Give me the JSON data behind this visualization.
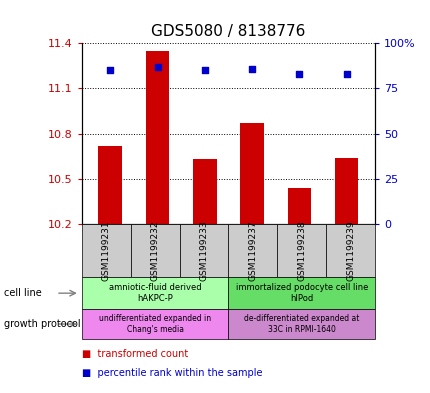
{
  "title": "GDS5080 / 8138776",
  "samples": [
    "GSM1199231",
    "GSM1199232",
    "GSM1199233",
    "GSM1199237",
    "GSM1199238",
    "GSM1199239"
  ],
  "bar_values": [
    10.72,
    11.35,
    10.63,
    10.87,
    10.44,
    10.64
  ],
  "percentile_values": [
    85,
    87,
    85,
    86,
    83,
    83
  ],
  "ylim_left": [
    10.2,
    11.4
  ],
  "ylim_right": [
    0,
    100
  ],
  "yticks_left": [
    10.2,
    10.5,
    10.8,
    11.1,
    11.4
  ],
  "yticks_right": [
    0,
    25,
    50,
    75,
    100
  ],
  "ytick_labels_left": [
    "10.2",
    "10.5",
    "10.8",
    "11.1",
    "11.4"
  ],
  "ytick_labels_right": [
    "0",
    "25",
    "50",
    "75",
    "100%"
  ],
  "bar_color": "#cc0000",
  "scatter_color": "#0000cc",
  "cell_line_labels": [
    "amniotic-fluid derived\nhAKPC-P",
    "immortalized podocyte cell line\nhIPod"
  ],
  "cell_line_colors": [
    "#aaffaa",
    "#66dd66"
  ],
  "growth_protocol_labels": [
    "undifferentiated expanded in\nChang's media",
    "de-differentiated expanded at\n33C in RPMI-1640"
  ],
  "growth_protocol_colors": [
    "#ee88ee",
    "#cc88cc"
  ],
  "background_color": "#ffffff",
  "plot_bg_color": "#ffffff",
  "grid_color": "#000000"
}
